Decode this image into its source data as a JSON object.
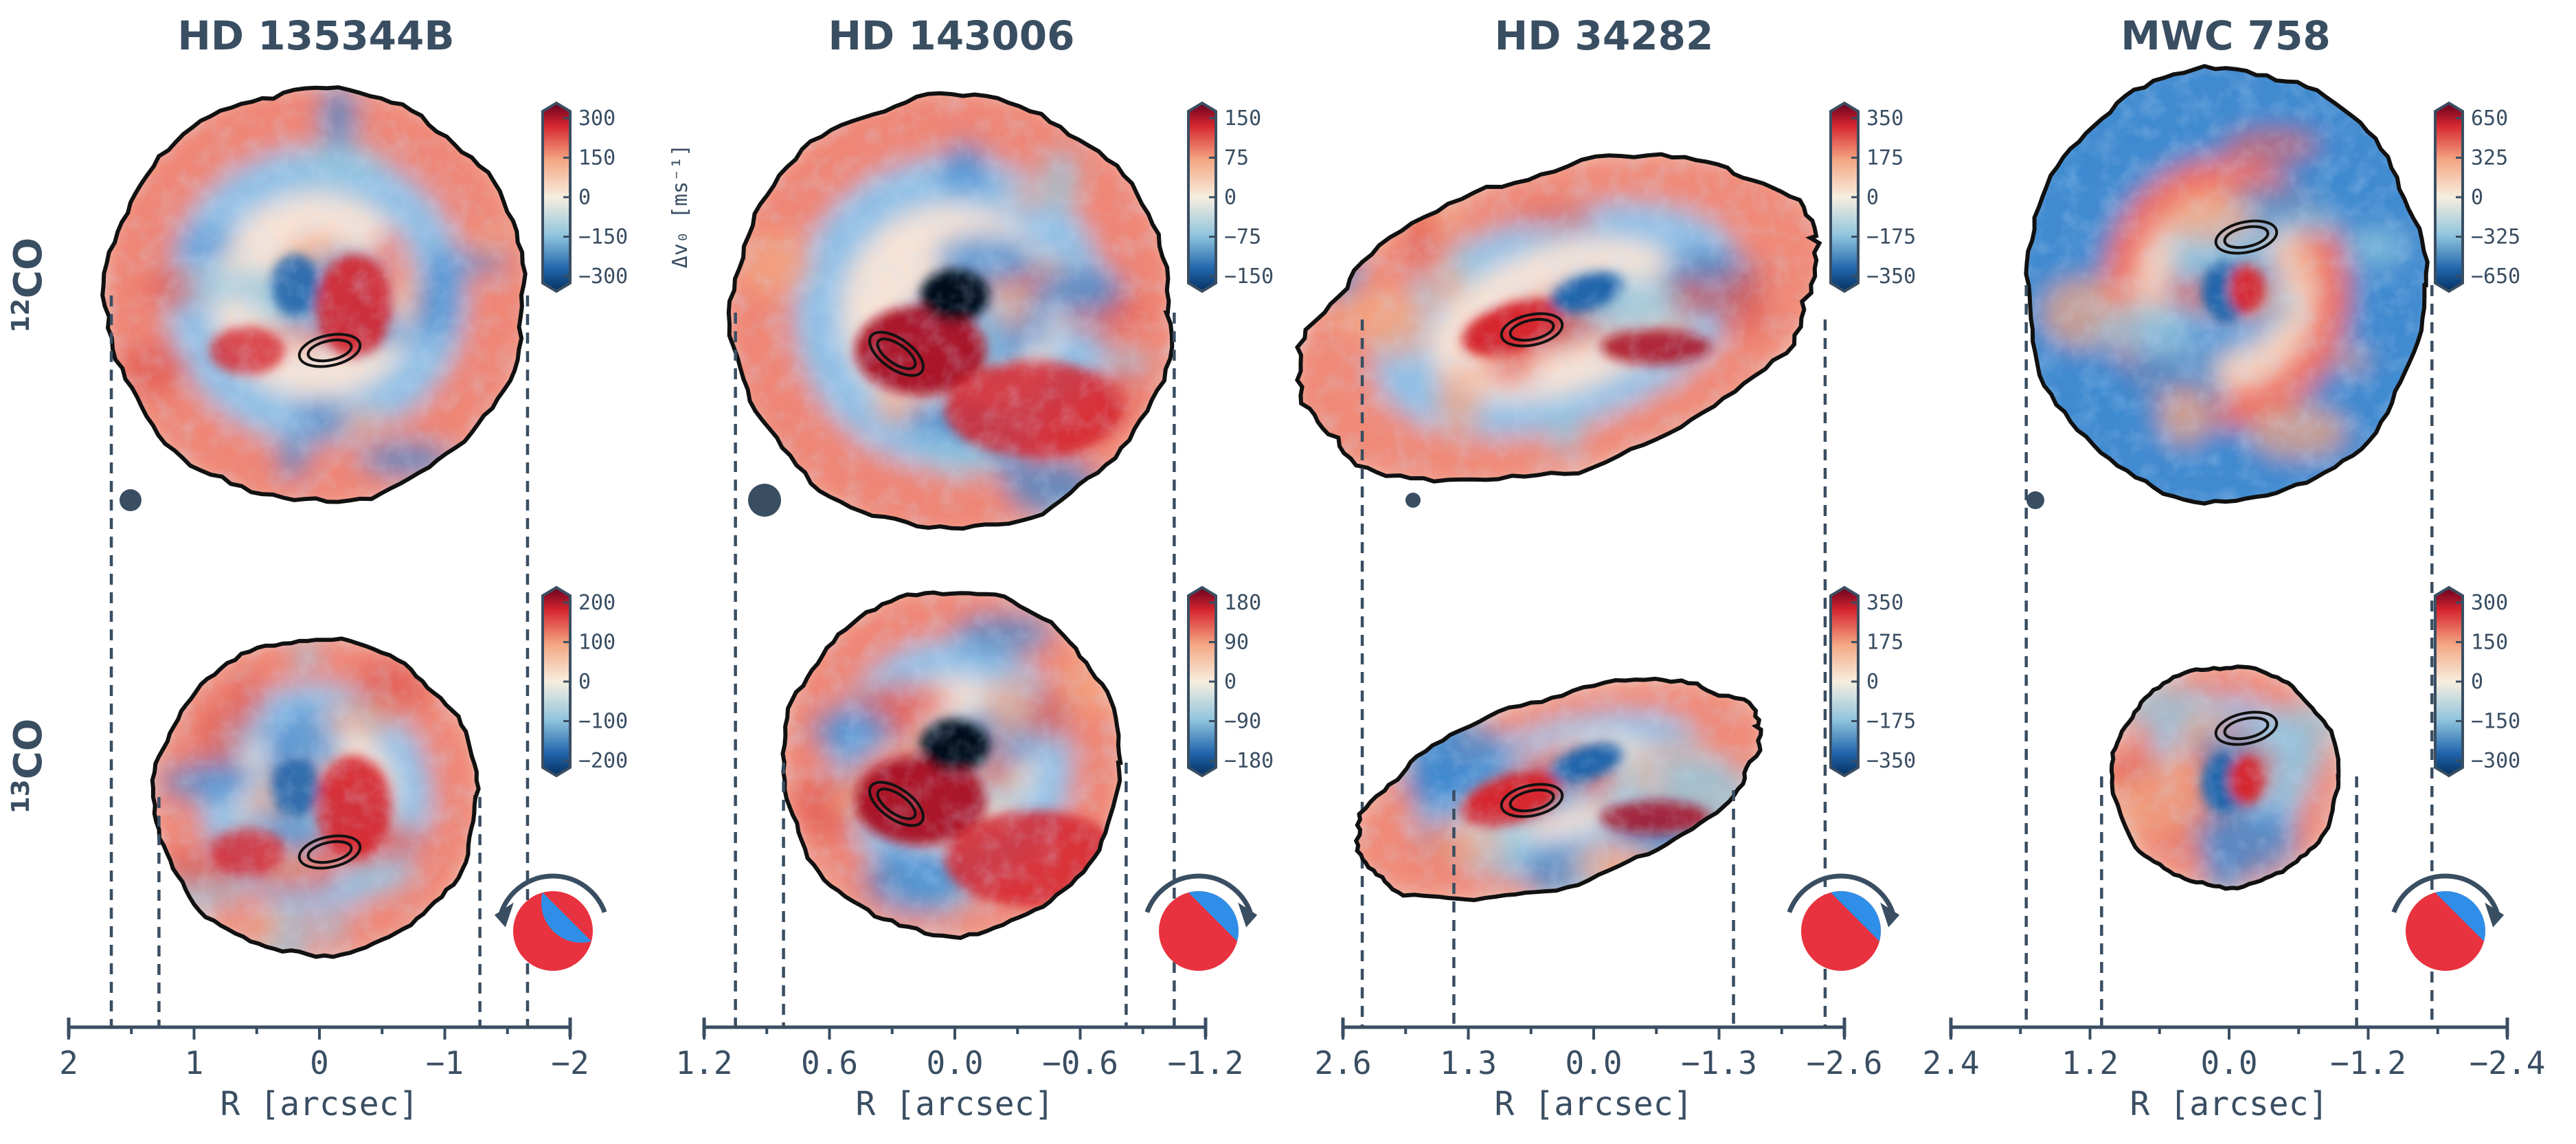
{
  "colors": {
    "ink": "#3a4e62",
    "dark_blue": "#053061",
    "blue": "#2166ac",
    "light_blue": "#92c5de",
    "neutral": "#f7eedf",
    "light_red": "#f4a582",
    "red": "#d6262f",
    "dark_red": "#67001f",
    "pie_blue": "#2f8fe8",
    "pie_red": "#e8323f"
  },
  "row_labels": {
    "row1": "12",
    "row1_mol": "CO",
    "row2": "13",
    "row2_mol": "CO"
  },
  "colorbar_label": "Δv₀ [ms⁻¹]",
  "chart_data": [
    {
      "type": "heatmap",
      "title": "HD 135344B",
      "xlabel": "R [arcsec]",
      "xticks": [
        "2",
        "1",
        "0",
        "−1",
        "−2"
      ],
      "xlim": [
        2,
        -2
      ],
      "rotation": "counterclockwise",
      "rows": [
        {
          "molecule": "12CO",
          "colorbar_ticks": [
            "300",
            "150",
            "0",
            "−150",
            "−300"
          ],
          "vlim": [
            -300,
            300
          ],
          "disk_radius_arcsec": 1.66
        },
        {
          "molecule": "13CO",
          "colorbar_ticks": [
            "200",
            "100",
            "0",
            "−100",
            "−200"
          ],
          "vlim": [
            -200,
            200
          ],
          "disk_radius_arcsec": 1.28
        }
      ]
    },
    {
      "type": "heatmap",
      "title": "HD 143006",
      "xlabel": "R [arcsec]",
      "xticks": [
        "1.2",
        "0.6",
        "0.0",
        "−0.6",
        "−1.2"
      ],
      "xlim": [
        1.2,
        -1.2
      ],
      "rotation": "clockwise",
      "rows": [
        {
          "molecule": "12CO",
          "colorbar_ticks": [
            "150",
            "75",
            "0",
            "−75",
            "−150"
          ],
          "vlim": [
            -150,
            150
          ],
          "disk_radius_arcsec": 1.05
        },
        {
          "molecule": "13CO",
          "colorbar_ticks": [
            "180",
            "90",
            "0",
            "−90",
            "−180"
          ],
          "vlim": [
            -180,
            180
          ],
          "disk_radius_arcsec": 0.82
        }
      ]
    },
    {
      "type": "heatmap",
      "title": "HD 34282",
      "xlabel": "R [arcsec]",
      "xticks": [
        "2.6",
        "1.3",
        "0.0",
        "−1.3",
        "−2.6"
      ],
      "xlim": [
        2.6,
        -2.6
      ],
      "rotation": "clockwise",
      "rows": [
        {
          "molecule": "12CO",
          "colorbar_ticks": [
            "350",
            "175",
            "0",
            "−175",
            "−350"
          ],
          "vlim": [
            -350,
            350
          ],
          "disk_radius_arcsec": 2.4
        },
        {
          "molecule": "13CO",
          "colorbar_ticks": [
            "350",
            "175",
            "0",
            "−175",
            "−350"
          ],
          "vlim": [
            -350,
            350
          ],
          "disk_radius_arcsec": 1.45
        }
      ]
    },
    {
      "type": "heatmap",
      "title": "MWC 758",
      "xlabel": "R [arcsec]",
      "xticks": [
        "2.4",
        "1.2",
        "0.0",
        "−1.2",
        "−2.4"
      ],
      "xlim": [
        2.4,
        -2.4
      ],
      "rotation": "clockwise",
      "rows": [
        {
          "molecule": "12CO",
          "colorbar_ticks": [
            "650",
            "325",
            "0",
            "−325",
            "−650"
          ],
          "vlim": [
            -650,
            650
          ],
          "disk_radius_arcsec": 1.75
        },
        {
          "molecule": "13CO",
          "colorbar_ticks": [
            "300",
            "150",
            "0",
            "−150",
            "−300"
          ],
          "vlim": [
            -300,
            300
          ],
          "disk_radius_arcsec": 1.1
        }
      ]
    }
  ]
}
